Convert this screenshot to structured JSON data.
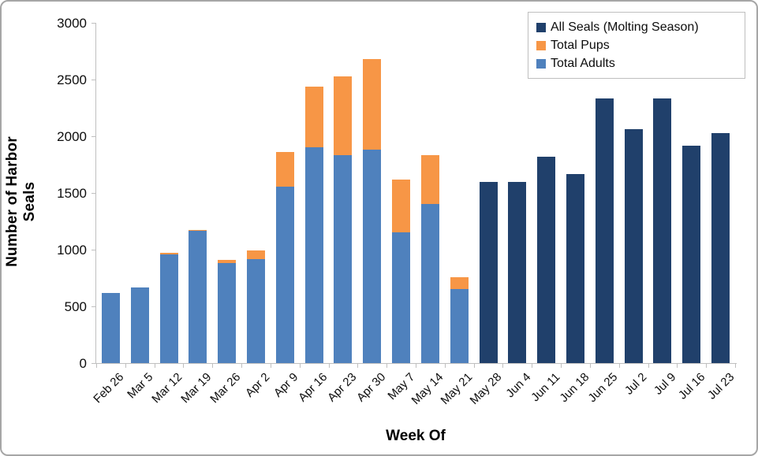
{
  "chart_data": {
    "type": "bar",
    "stacked": true,
    "title": "",
    "xlabel": "Week Of",
    "ylabel": "Number of Harbor Seals",
    "ylim": [
      0,
      3000
    ],
    "yticks": [
      0,
      500,
      1000,
      1500,
      2000,
      2500,
      3000
    ],
    "grid": false,
    "legend_position": "top-right",
    "axis_color": "#bfbfbf",
    "categories": [
      "Feb 26",
      "Mar 5",
      "Mar 12",
      "Mar 19",
      "Mar 26",
      "Apr 2",
      "Apr 9",
      "Apr 16",
      "Apr 23",
      "Apr 30",
      "May 7",
      "May 14",
      "May 21",
      "May 28",
      "Jun 4",
      "Jun 11",
      "Jun 18",
      "Jun 25",
      "Jul 2",
      "Jul 9",
      "Jul 16",
      "Jul 23"
    ],
    "series": [
      {
        "name": "All Seals (Molting Season)",
        "color": "#20406b",
        "values": [
          0,
          0,
          0,
          0,
          0,
          0,
          0,
          0,
          0,
          0,
          0,
          0,
          0,
          1600,
          1595,
          1820,
          1670,
          2335,
          2060,
          2330,
          1920,
          2025
        ]
      },
      {
        "name": "Total Pups",
        "color": "#f79646",
        "values": [
          0,
          0,
          10,
          10,
          30,
          75,
          305,
          535,
          695,
          800,
          470,
          435,
          105,
          0,
          0,
          0,
          0,
          0,
          0,
          0,
          0,
          0
        ]
      },
      {
        "name": "Total Adults",
        "color": "#4f81bd",
        "values": [
          615,
          665,
          960,
          1165,
          880,
          915,
          1555,
          1900,
          1830,
          1880,
          1150,
          1400,
          655,
          0,
          0,
          0,
          0,
          0,
          0,
          0,
          0,
          0
        ]
      }
    ]
  }
}
